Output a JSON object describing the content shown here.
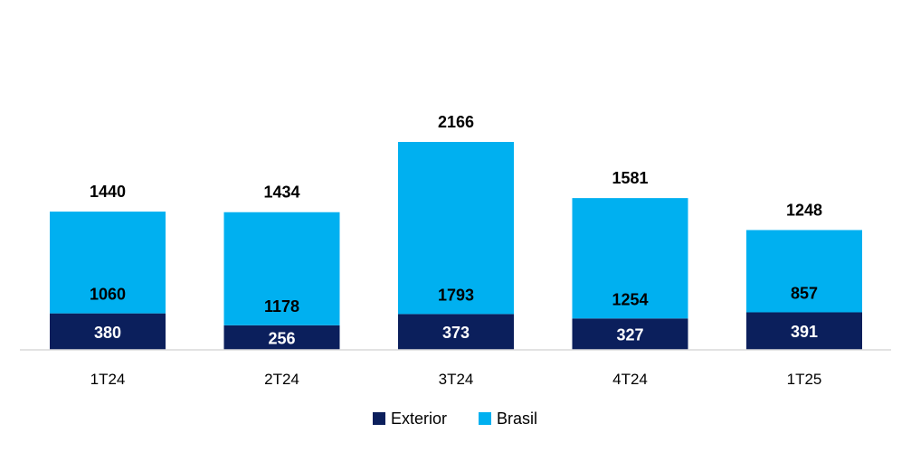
{
  "chart_data": {
    "type": "bar",
    "stacked": true,
    "categories": [
      "1T24",
      "2T24",
      "3T24",
      "4T24",
      "1T25"
    ],
    "series": [
      {
        "name": "Exterior",
        "values": [
          380,
          256,
          373,
          327,
          391
        ],
        "color": "#0b1f5c"
      },
      {
        "name": "Brasil",
        "values": [
          1060,
          1178,
          1793,
          1254,
          857
        ],
        "color": "#00b0f0"
      }
    ],
    "totals": [
      1440,
      1434,
      2166,
      1581,
      1248
    ],
    "legend_position": "bottom",
    "grid": false
  }
}
